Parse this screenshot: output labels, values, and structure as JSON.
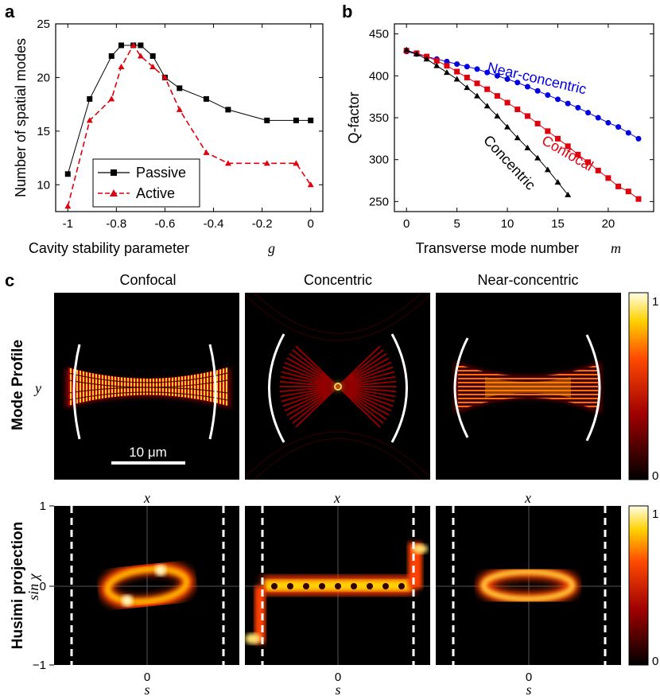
{
  "panel_labels": {
    "a": "a",
    "b": "b",
    "c": "c"
  },
  "chart_data": [
    {
      "id": "a",
      "type": "line",
      "title": "",
      "xlabel": "Cavity stability parameter",
      "xlabel_var": "g",
      "ylabel": "Number of spatial modes",
      "xlim": [
        -1.05,
        0.05
      ],
      "ylim": [
        7.5,
        25
      ],
      "xticks": [
        -1,
        -0.8,
        -0.6,
        -0.4,
        -0.2,
        0
      ],
      "xtick_labels": [
        "-1",
        "-0.8",
        "-0.6",
        "-0.4",
        "-0.2",
        "0"
      ],
      "yticks": [
        10,
        15,
        20,
        25
      ],
      "series": [
        {
          "name": "Passive",
          "color": "#000000",
          "marker": "square",
          "dash": "solid",
          "x": [
            -1,
            -0.91,
            -0.82,
            -0.78,
            -0.73,
            -0.7,
            -0.65,
            -0.6,
            -0.54,
            -0.43,
            -0.34,
            -0.18,
            -0.06,
            0
          ],
          "y": [
            11,
            18,
            22,
            23,
            23,
            23,
            22,
            20,
            19,
            18,
            17,
            16,
            16,
            16
          ]
        },
        {
          "name": "Active",
          "color": "#e0000d",
          "marker": "triangle",
          "dash": "dashed",
          "x": [
            -1,
            -0.91,
            -0.82,
            -0.78,
            -0.73,
            -0.7,
            -0.65,
            -0.6,
            -0.54,
            -0.43,
            -0.34,
            -0.18,
            -0.06,
            0
          ],
          "y": [
            8,
            16,
            18,
            21,
            23,
            22,
            21,
            20,
            17,
            13,
            12,
            12,
            12,
            10
          ]
        }
      ]
    },
    {
      "id": "b",
      "type": "scatter",
      "title": "",
      "xlabel": "Transverse mode number",
      "xlabel_var": "m",
      "ylabel": "Q-factor",
      "xlim": [
        -1.2,
        24.5
      ],
      "ylim": [
        238,
        462
      ],
      "xticks": [
        0,
        5,
        10,
        15,
        20
      ],
      "yticks": [
        250,
        300,
        350,
        400,
        450
      ],
      "series": [
        {
          "name": "Near-concentric",
          "color": "#0000e0",
          "marker": "circle",
          "x": [
            0,
            1,
            2,
            3,
            4,
            5,
            6,
            7,
            8,
            9,
            10,
            11,
            12,
            13,
            14,
            15,
            16,
            17,
            18,
            19,
            20,
            21,
            22,
            23
          ],
          "y": [
            429,
            426,
            423,
            420,
            417,
            414,
            411,
            408,
            404,
            400,
            396,
            392,
            387,
            382,
            377,
            372,
            367,
            362,
            356,
            350,
            344,
            339,
            332,
            325
          ]
        },
        {
          "name": "Confocal",
          "color": "#e0000d",
          "marker": "square",
          "x": [
            0,
            1,
            2,
            3,
            4,
            5,
            6,
            7,
            8,
            9,
            10,
            11,
            12,
            13,
            14,
            15,
            16,
            17,
            18,
            19,
            20,
            21,
            22,
            23
          ],
          "y": [
            430,
            427,
            423,
            418,
            412,
            405,
            398,
            391,
            384,
            376,
            368,
            360,
            352,
            343,
            334,
            325,
            316,
            306,
            297,
            287,
            278,
            268,
            262,
            253
          ]
        },
        {
          "name": "Concentric",
          "color": "#000000",
          "marker": "triangle",
          "x": [
            0,
            1,
            2,
            3,
            4,
            5,
            6,
            7,
            8,
            9,
            10,
            11,
            12,
            13,
            14,
            15,
            16
          ],
          "y": [
            431,
            426,
            420,
            412,
            404,
            396,
            386,
            376,
            364,
            352,
            339,
            326,
            314,
            302,
            288,
            273,
            258
          ]
        }
      ],
      "annotations": [
        "Near-concentric",
        "Confocal",
        "Concentric"
      ]
    }
  ],
  "panel_c": {
    "columns": [
      "Confocal",
      "Concentric",
      "Near-concentric"
    ],
    "row_labels": [
      "Mode Profile",
      "Husimi projection"
    ],
    "mode_profile": {
      "y_label": "y",
      "x_label": "x",
      "scale_bar": "10 μm"
    },
    "husimi": {
      "y_label": "sin χ",
      "x_label": "s",
      "yticks": [
        "1",
        "0",
        "−1"
      ],
      "xtick": "0"
    },
    "colorbar": {
      "min": "0",
      "max": "1"
    }
  }
}
